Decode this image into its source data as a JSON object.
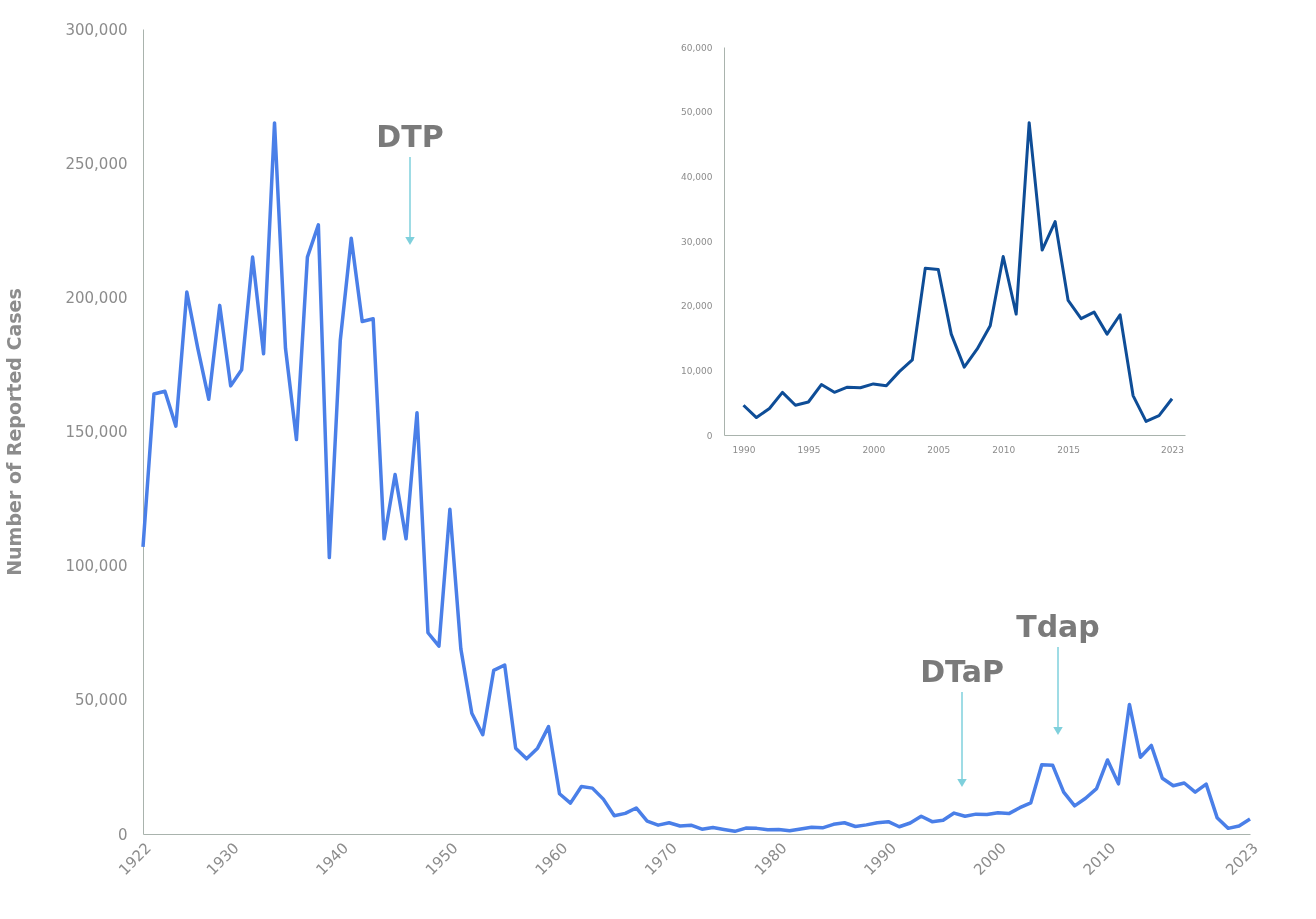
{
  "chart_data": [
    {
      "type": "line",
      "ylabel": "Number of Reported Cases",
      "x": [
        1922,
        1923,
        1924,
        1925,
        1926,
        1927,
        1928,
        1929,
        1930,
        1931,
        1932,
        1933,
        1934,
        1935,
        1936,
        1937,
        1938,
        1939,
        1940,
        1941,
        1942,
        1943,
        1944,
        1945,
        1946,
        1947,
        1948,
        1949,
        1950,
        1951,
        1952,
        1953,
        1954,
        1955,
        1956,
        1957,
        1958,
        1959,
        1960,
        1961,
        1962,
        1963,
        1964,
        1965,
        1966,
        1967,
        1968,
        1969,
        1970,
        1971,
        1972,
        1973,
        1974,
        1975,
        1976,
        1977,
        1978,
        1979,
        1980,
        1981,
        1982,
        1983,
        1984,
        1985,
        1986,
        1987,
        1988,
        1989,
        1990,
        1991,
        1992,
        1993,
        1994,
        1995,
        1996,
        1997,
        1998,
        1999,
        2000,
        2001,
        2002,
        2003,
        2004,
        2005,
        2006,
        2007,
        2008,
        2009,
        2010,
        2011,
        2012,
        2013,
        2014,
        2015,
        2016,
        2017,
        2018,
        2019,
        2020,
        2021,
        2022,
        2023
      ],
      "series": [
        {
          "color": "#4a7fe8",
          "values": [
            107000,
            164000,
            165000,
            152000,
            202000,
            181000,
            162000,
            197000,
            167000,
            173000,
            215000,
            179000,
            265000,
            181000,
            147000,
            215000,
            227000,
            103000,
            184000,
            222000,
            191000,
            192000,
            110000,
            134000,
            110000,
            157000,
            75000,
            70000,
            121000,
            69000,
            45000,
            37000,
            61000,
            63000,
            32000,
            28000,
            32000,
            40000,
            15000,
            11500,
            17700,
            17100,
            13000,
            6800,
            7700,
            9700,
            4800,
            3300,
            4200,
            3000,
            3300,
            1800,
            2400,
            1700,
            1000,
            2200,
            2100,
            1600,
            1700,
            1200,
            1900,
            2500,
            2300,
            3600,
            4200,
            2800,
            3400,
            4200,
            4600,
            2700,
            4100,
            6600,
            4600,
            5100,
            7800,
            6600,
            7400,
            7300,
            7900,
            7600,
            9800,
            11600,
            25800,
            25600,
            15600,
            10500,
            13300,
            16900,
            27600,
            18700,
            48300,
            28600,
            33000,
            20800,
            18000,
            19000,
            15600,
            18600,
            6100,
            2100,
            3000,
            5600
          ]
        }
      ],
      "xlim": [
        1922,
        2023
      ],
      "xticks": [
        1922,
        1930,
        1940,
        1950,
        1960,
        1970,
        1980,
        1990,
        2000,
        2010,
        2023
      ],
      "ylim": [
        0,
        300000
      ],
      "yticks": [
        {
          "value": 0,
          "label": "0"
        },
        {
          "value": 50000,
          "label": "50,000"
        },
        {
          "value": 100000,
          "label": "100,000"
        },
        {
          "value": 150000,
          "label": "150,000"
        },
        {
          "value": 200000,
          "label": "200,000"
        },
        {
          "value": 250000,
          "label": "250,000"
        },
        {
          "value": 300000,
          "label": "300,000"
        }
      ],
      "annotations": [
        "DTP",
        "DTaP",
        "Tdap"
      ],
      "grid": false
    },
    {
      "type": "line",
      "x": [
        1990,
        1991,
        1992,
        1993,
        1994,
        1995,
        1996,
        1997,
        1998,
        1999,
        2000,
        2001,
        2002,
        2003,
        2004,
        2005,
        2006,
        2007,
        2008,
        2009,
        2010,
        2011,
        2012,
        2013,
        2014,
        2015,
        2016,
        2017,
        2018,
        2019,
        2020,
        2021,
        2022,
        2023
      ],
      "series": [
        {
          "color": "#0e4d97",
          "values": [
            4600,
            2700,
            4100,
            6600,
            4600,
            5100,
            7800,
            6600,
            7400,
            7300,
            7900,
            7600,
            9800,
            11600,
            25800,
            25600,
            15600,
            10500,
            13300,
            16900,
            27600,
            18700,
            48300,
            28600,
            33000,
            20800,
            18000,
            19000,
            15600,
            18600,
            6100,
            2100,
            3000,
            5600
          ]
        }
      ],
      "xlim": [
        1988.5,
        2024
      ],
      "xticks": [
        1990,
        1995,
        2000,
        2005,
        2010,
        2015,
        2023
      ],
      "ylim": [
        0,
        60000
      ],
      "yticks": [
        {
          "value": 0,
          "label": "0"
        },
        {
          "value": 10000,
          "label": "10,000"
        },
        {
          "value": 20000,
          "label": "20,000"
        },
        {
          "value": 30000,
          "label": "30,000"
        },
        {
          "value": 40000,
          "label": "40,000"
        },
        {
          "value": 50000,
          "label": "50,000"
        },
        {
          "value": 60000,
          "label": "60,000"
        }
      ],
      "grid": false
    }
  ]
}
